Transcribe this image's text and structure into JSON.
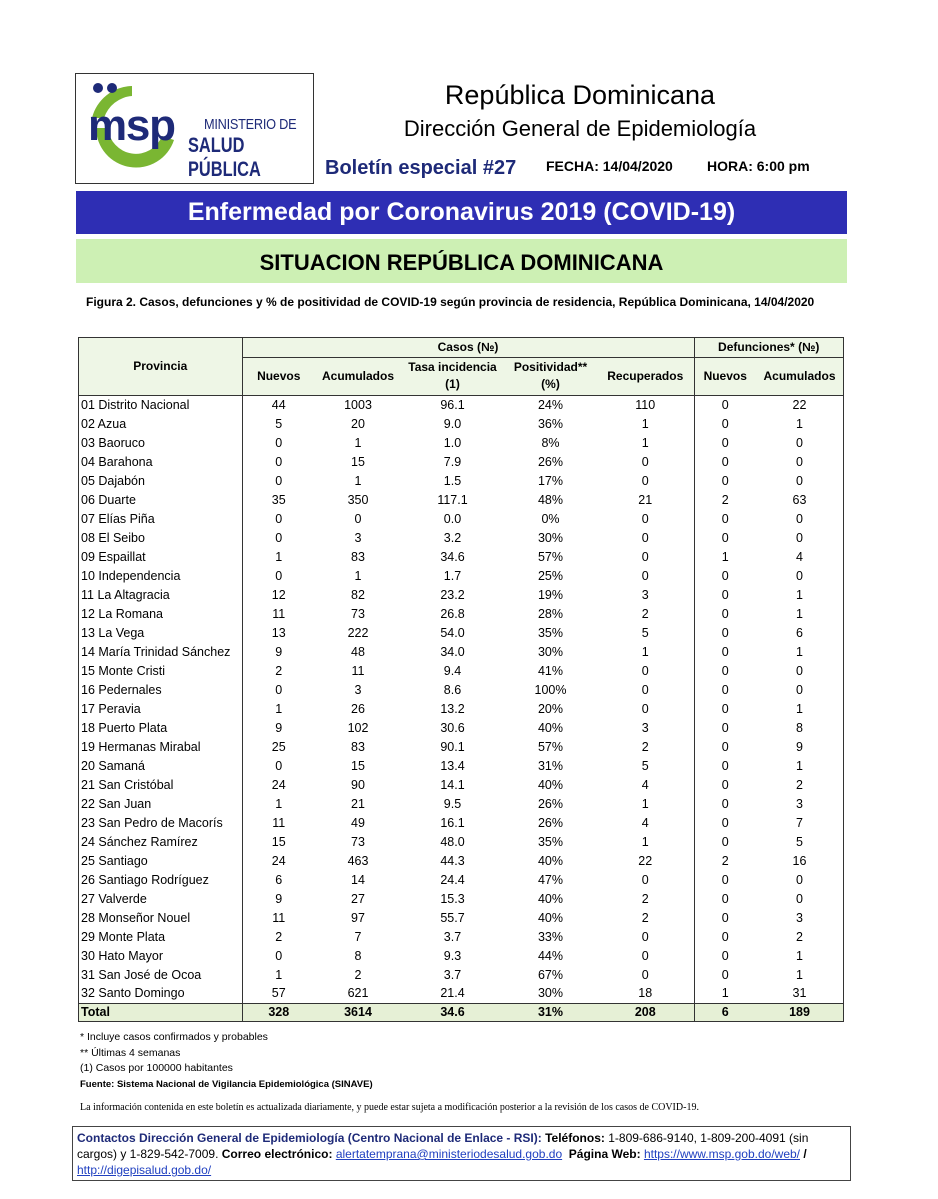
{
  "header": {
    "logo_text": "msp",
    "logo_line1": "MINISTERIO DE",
    "logo_line2": "SALUD PÚBLICA",
    "title": "República Dominicana",
    "subtitle": "Dirección General de Epidemiología",
    "bulletin": "Boletín especial #27",
    "fecha": "FECHA: 14/04/2020",
    "hora": "HORA: 6:00 pm"
  },
  "banner": "Enfermedad por Coronavirus 2019 (COVID-19)",
  "section": "SITUACION REPÚBLICA DOMINICANA",
  "figure_caption": "Figura 2. Casos, defunciones y % de positividad de COVID-19 según provincia de residencia, República Dominicana, 14/04/2020",
  "table": {
    "group_provincia": "Provincia",
    "group_casos": "Casos (№)",
    "group_def": "Defunciones* (№)",
    "columns": [
      "Nuevos",
      "Acumulados",
      "Tasa incidencia (1)",
      "Positividad** (%)",
      "Recuperados",
      "Nuevos",
      "Acumulados"
    ],
    "rows": [
      [
        "01 Distrito Nacional",
        "44",
        "1003",
        "96.1",
        "24%",
        "110",
        "0",
        "22"
      ],
      [
        "02 Azua",
        "5",
        "20",
        "9.0",
        "36%",
        "1",
        "0",
        "1"
      ],
      [
        "03 Baoruco",
        "0",
        "1",
        "1.0",
        "8%",
        "1",
        "0",
        "0"
      ],
      [
        "04 Barahona",
        "0",
        "15",
        "7.9",
        "26%",
        "0",
        "0",
        "0"
      ],
      [
        "05 Dajabón",
        "0",
        "1",
        "1.5",
        "17%",
        "0",
        "0",
        "0"
      ],
      [
        "06 Duarte",
        "35",
        "350",
        "117.1",
        "48%",
        "21",
        "2",
        "63"
      ],
      [
        "07 Elías Piña",
        "0",
        "0",
        "0.0",
        "0%",
        "0",
        "0",
        "0"
      ],
      [
        "08 El Seibo",
        "0",
        "3",
        "3.2",
        "30%",
        "0",
        "0",
        "0"
      ],
      [
        "09 Espaillat",
        "1",
        "83",
        "34.6",
        "57%",
        "0",
        "1",
        "4"
      ],
      [
        "10 Independencia",
        "0",
        "1",
        "1.7",
        "25%",
        "0",
        "0",
        "0"
      ],
      [
        "11 La Altagracia",
        "12",
        "82",
        "23.2",
        "19%",
        "3",
        "0",
        "1"
      ],
      [
        "12 La Romana",
        "11",
        "73",
        "26.8",
        "28%",
        "2",
        "0",
        "1"
      ],
      [
        "13 La Vega",
        "13",
        "222",
        "54.0",
        "35%",
        "5",
        "0",
        "6"
      ],
      [
        "14 María Trinidad Sánchez",
        "9",
        "48",
        "34.0",
        "30%",
        "1",
        "0",
        "1"
      ],
      [
        "15 Monte Cristi",
        "2",
        "11",
        "9.4",
        "41%",
        "0",
        "0",
        "0"
      ],
      [
        "16 Pedernales",
        "0",
        "3",
        "8.6",
        "100%",
        "0",
        "0",
        "0"
      ],
      [
        "17 Peravia",
        "1",
        "26",
        "13.2",
        "20%",
        "0",
        "0",
        "1"
      ],
      [
        "18 Puerto Plata",
        "9",
        "102",
        "30.6",
        "40%",
        "3",
        "0",
        "8"
      ],
      [
        "19 Hermanas Mirabal",
        "25",
        "83",
        "90.1",
        "57%",
        "2",
        "0",
        "9"
      ],
      [
        "20 Samaná",
        "0",
        "15",
        "13.4",
        "31%",
        "5",
        "0",
        "1"
      ],
      [
        "21 San Cristóbal",
        "24",
        "90",
        "14.1",
        "40%",
        "4",
        "0",
        "2"
      ],
      [
        "22 San Juan",
        "1",
        "21",
        "9.5",
        "26%",
        "1",
        "0",
        "3"
      ],
      [
        "23 San Pedro de Macorís",
        "11",
        "49",
        "16.1",
        "26%",
        "4",
        "0",
        "7"
      ],
      [
        "24 Sánchez Ramírez",
        "15",
        "73",
        "48.0",
        "35%",
        "1",
        "0",
        "5"
      ],
      [
        "25 Santiago",
        "24",
        "463",
        "44.3",
        "40%",
        "22",
        "2",
        "16"
      ],
      [
        "26 Santiago Rodríguez",
        "6",
        "14",
        "24.4",
        "47%",
        "0",
        "0",
        "0"
      ],
      [
        "27 Valverde",
        "9",
        "27",
        "15.3",
        "40%",
        "2",
        "0",
        "0"
      ],
      [
        "28 Monseñor Nouel",
        "11",
        "97",
        "55.7",
        "40%",
        "2",
        "0",
        "3"
      ],
      [
        "29 Monte Plata",
        "2",
        "7",
        "3.7",
        "33%",
        "0",
        "0",
        "2"
      ],
      [
        "30 Hato Mayor",
        "0",
        "8",
        "9.3",
        "44%",
        "0",
        "0",
        "1"
      ],
      [
        "31 San José de Ocoa",
        "1",
        "2",
        "3.7",
        "67%",
        "0",
        "0",
        "1"
      ],
      [
        "32 Santo Domingo",
        "57",
        "621",
        "21.4",
        "30%",
        "18",
        "1",
        "31"
      ]
    ],
    "total": [
      "Total",
      "328",
      "3614",
      "34.6",
      "31%",
      "208",
      "6",
      "189"
    ]
  },
  "notes": {
    "n1": "* Incluye casos confirmados y probables",
    "n2": "** Últimas 4 semanas",
    "n3": "(1) Casos por 100000 habitantes",
    "source": "Fuente: Sistema Nacional de Vigilancia Epidemiológica (SINAVE)"
  },
  "info": "La información contenida en este boletín es actualizada diariamente, y puede estar sujeta a modificación posterior a la revisión de los casos de COVID-19.",
  "contact": {
    "title": "Contactos Dirección General de Epidemiología (Centro Nacional de Enlace - RSI):",
    "tel_label": "Teléfonos:",
    "tel": " 1-809-686-9140, 1-809-200-4091 (sin cargos) y 1-829-542-7009.",
    "email_label": "Correo electrónico:",
    "email": "alertatemprana@ministeriodesalud.gob.do",
    "web_label": "Página Web:",
    "web1": "https://www.msp.gob.do/web/",
    "sep": " / ",
    "web2": "http://digepisalud.gob.do/"
  },
  "colors": {
    "blue_band": "#2e2eb4",
    "green_band": "#cdf0b4",
    "logo_blue": "#1e2a78",
    "logo_green": "#7ab632"
  }
}
